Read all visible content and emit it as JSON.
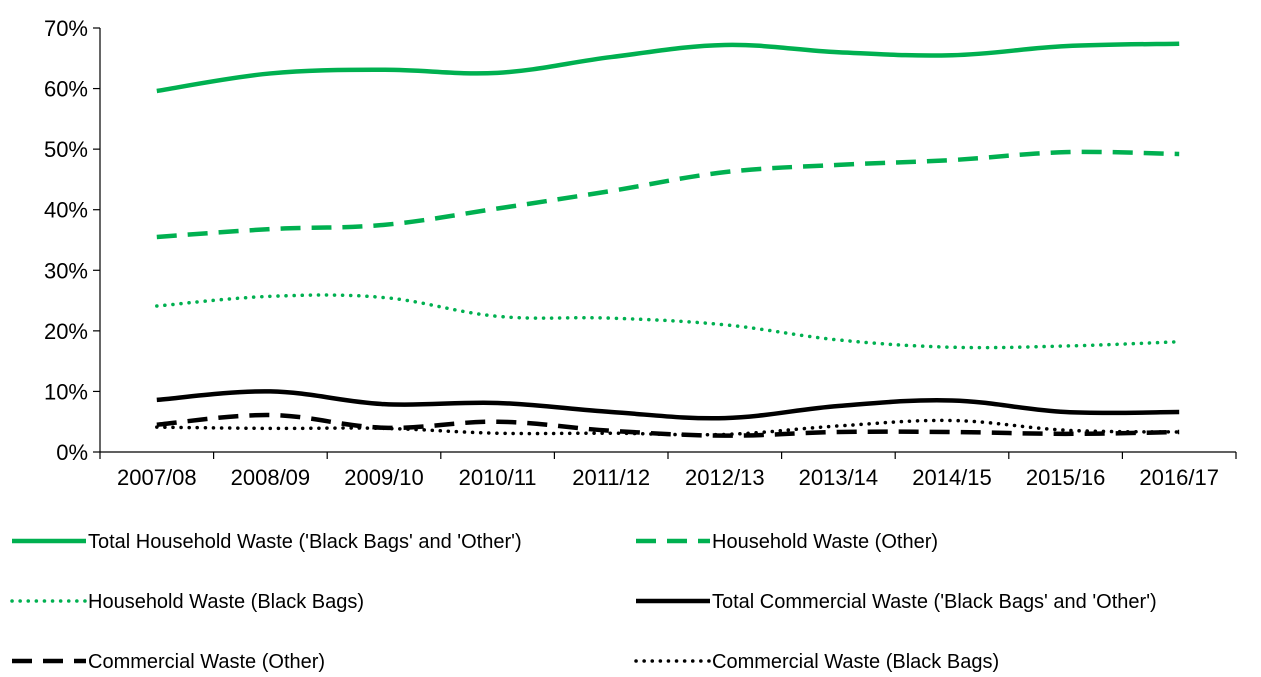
{
  "chart_data": {
    "type": "line",
    "categories": [
      "2007/08",
      "2008/09",
      "2009/10",
      "2010/11",
      "2011/12",
      "2012/13",
      "2013/14",
      "2014/15",
      "2015/16",
      "2016/17"
    ],
    "yticks": [
      "0%",
      "10%",
      "20%",
      "30%",
      "40%",
      "50%",
      "60%",
      "70%"
    ],
    "ylim": [
      0,
      70
    ],
    "grid": false,
    "legend_position": "bottom",
    "series": [
      {
        "name": "Total Household Waste ('Black Bags' and 'Other')",
        "values": [
          59.6,
          62.5,
          63.1,
          62.6,
          65.2,
          67.2,
          66.0,
          65.5,
          67.0,
          67.4
        ],
        "color": "#00b050",
        "style": "solid"
      },
      {
        "name": "Household Waste (Other)",
        "values": [
          35.5,
          36.8,
          37.5,
          40.2,
          43.1,
          46.2,
          47.4,
          48.2,
          49.5,
          49.2
        ],
        "color": "#00b050",
        "style": "dashed"
      },
      {
        "name": "Household Waste (Black Bags)",
        "values": [
          24.1,
          25.7,
          25.5,
          22.4,
          22.1,
          21.0,
          18.5,
          17.3,
          17.5,
          18.2
        ],
        "color": "#00b050",
        "style": "dotted"
      },
      {
        "name": "Total Commercial Waste ('Black Bags' and 'Other')",
        "values": [
          8.6,
          10.0,
          7.9,
          8.1,
          6.6,
          5.6,
          7.6,
          8.5,
          6.6,
          6.6
        ],
        "color": "#000000",
        "style": "solid"
      },
      {
        "name": "Commercial Waste (Other)",
        "values": [
          4.5,
          6.1,
          4.0,
          5.0,
          3.5,
          2.7,
          3.3,
          3.3,
          3.0,
          3.3
        ],
        "color": "#000000",
        "style": "dashed"
      },
      {
        "name": "Commercial Waste (Black Bags)",
        "values": [
          4.1,
          3.9,
          3.9,
          3.1,
          3.1,
          2.9,
          4.3,
          5.2,
          3.6,
          3.3
        ],
        "color": "#000000",
        "style": "dotted"
      }
    ]
  }
}
